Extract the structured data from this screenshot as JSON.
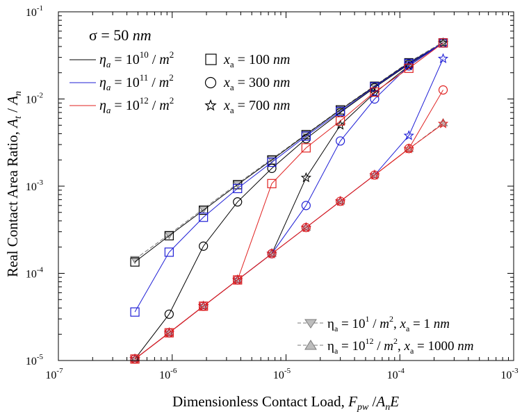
{
  "chart_data": {
    "type": "line",
    "xscale": "log",
    "yscale": "log",
    "xlim": [
      1e-07,
      0.001
    ],
    "ylim": [
      1e-05,
      0.1
    ],
    "grid": false,
    "xlabel": "Dimensionless Contact Load, F_pw /A_nE",
    "ylabel": "Real Contact Area Ratio, A_t / A_n",
    "x_ticks": [
      {
        "v": 1e-07,
        "b": "10",
        "e": "-7"
      },
      {
        "v": 1e-06,
        "b": "10",
        "e": "-6"
      },
      {
        "v": 1e-05,
        "b": "10",
        "e": "-5"
      },
      {
        "v": 0.0001,
        "b": "10",
        "e": "-4"
      },
      {
        "v": 0.001,
        "b": "10",
        "e": "-3"
      }
    ],
    "y_ticks": [
      {
        "v": 1e-05,
        "b": "10",
        "e": "-5"
      },
      {
        "v": 0.0001,
        "b": "10",
        "e": "-4"
      },
      {
        "v": 0.001,
        "b": "10",
        "e": "-3"
      },
      {
        "v": 0.01,
        "b": "10",
        "e": "-2"
      },
      {
        "v": 0.1,
        "b": "10",
        "e": "-1"
      }
    ],
    "x": [
      4.7e-07,
      9.4e-07,
      1.88e-06,
      3.75e-06,
      7.5e-06,
      1.5e-05,
      3e-05,
      6e-05,
      0.00012,
      0.00024
    ],
    "legend_title": "σ = 50 nm",
    "legend_eta": [
      "η_a = 10^10 / m²",
      "η_a = 10^11 / m²",
      "η_a = 10^12 / m²"
    ],
    "legend_xa": [
      "x_a = 100 nm",
      "x_a = 300 nm",
      "x_a = 700 nm"
    ],
    "legend_limits": [
      "η_a = 10^1 / m², x_a = 1 nm",
      "η_a = 10^12 / m², x_a = 1000 nm"
    ],
    "colors": {
      "eta10": "#000000",
      "eta11": "#1f1fd6",
      "eta12": "#e0201f",
      "limit_line": "#7a7a7a",
      "limit_fill": "#bdbdbd"
    },
    "series": [
      {
        "eta": "10^10",
        "xa": "100 nm",
        "color": "#000000",
        "marker": "square",
        "values": [
          0.000135,
          0.00027,
          0.00053,
          0.00104,
          0.002,
          0.0039,
          0.0075,
          0.014,
          0.026,
          0.044
        ]
      },
      {
        "eta": "10^11",
        "xa": "100 nm",
        "color": "#1f1fd6",
        "marker": "square",
        "values": [
          3.6e-05,
          0.000175,
          0.00044,
          0.00094,
          0.00188,
          0.00375,
          0.0072,
          0.0138,
          0.0255,
          0.044
        ]
      },
      {
        "eta": "10^12",
        "xa": "100 nm",
        "color": "#e0201f",
        "marker": "square",
        "values": [
          1.04e-05,
          2.08e-05,
          4.2e-05,
          8.4e-05,
          0.00107,
          0.00275,
          0.0056,
          0.012,
          0.0225,
          0.044
        ]
      },
      {
        "eta": "10^10",
        "xa": "300 nm",
        "color": "#000000",
        "marker": "circle",
        "values": [
          1.04e-05,
          3.4e-05,
          0.000205,
          0.00066,
          0.0016,
          0.0035,
          0.007,
          0.0135,
          0.025,
          0.044
        ]
      },
      {
        "eta": "10^11",
        "xa": "300 nm",
        "color": "#1f1fd6",
        "marker": "circle",
        "values": [
          1.04e-05,
          2.08e-05,
          4.2e-05,
          8.4e-05,
          0.000168,
          0.0006,
          0.0033,
          0.01,
          0.024,
          0.044
        ]
      },
      {
        "eta": "10^12",
        "xa": "300 nm",
        "color": "#e0201f",
        "marker": "circle",
        "values": [
          1.04e-05,
          2.08e-05,
          4.2e-05,
          8.4e-05,
          0.000168,
          0.000335,
          0.00067,
          0.00134,
          0.0027,
          0.0127
        ]
      },
      {
        "eta": "10^10",
        "xa": "700 nm",
        "color": "#000000",
        "marker": "star",
        "values": [
          1.04e-05,
          2.08e-05,
          4.2e-05,
          8.4e-05,
          0.000168,
          0.00125,
          0.005,
          0.0117,
          0.024,
          0.044
        ]
      },
      {
        "eta": "10^11",
        "xa": "700 nm",
        "color": "#1f1fd6",
        "marker": "star",
        "values": [
          1.04e-05,
          2.08e-05,
          4.2e-05,
          8.4e-05,
          0.000168,
          0.000335,
          0.00067,
          0.00134,
          0.0038,
          0.029
        ]
      },
      {
        "eta": "10^12",
        "xa": "700 nm",
        "color": "#e0201f",
        "marker": "star",
        "values": [
          1.04e-05,
          2.08e-05,
          4.2e-05,
          8.4e-05,
          0.000168,
          0.000335,
          0.00067,
          0.00134,
          0.00268,
          0.0052
        ]
      },
      {
        "eta": "10^1",
        "xa": "1 nm",
        "color": "#7a7a7a",
        "marker": "triangle-down",
        "dashed": true,
        "values": [
          0.000145,
          0.00028,
          0.00055,
          0.00107,
          0.00205,
          0.00395,
          0.0076,
          0.0142,
          0.0265,
          0.045
        ]
      },
      {
        "eta": "10^12",
        "xa": "1000 nm",
        "color": "#7a7a7a",
        "marker": "triangle-up",
        "dashed": true,
        "values": [
          1.04e-05,
          2.08e-05,
          4.2e-05,
          8.4e-05,
          0.000168,
          0.000335,
          0.00067,
          0.00134,
          0.00268,
          0.0053
        ]
      }
    ]
  }
}
